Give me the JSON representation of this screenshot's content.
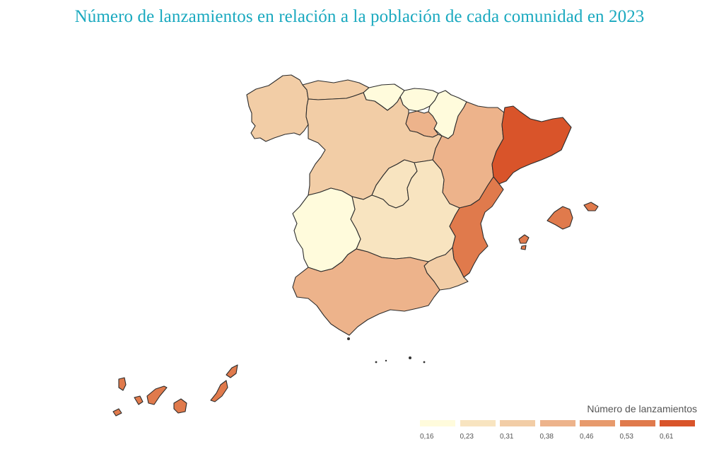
{
  "title": "Número de lanzamientos en relación a la población de cada comunidad en 2023",
  "legend": {
    "title": "Número de lanzamientos",
    "items": [
      {
        "label": "0,16",
        "color": "#fffbdc"
      },
      {
        "label": "0,23",
        "color": "#f8e4c0"
      },
      {
        "label": "0,31",
        "color": "#f2cda6"
      },
      {
        "label": "0,38",
        "color": "#edb38b"
      },
      {
        "label": "0,46",
        "color": "#e79a6c"
      },
      {
        "label": "0,53",
        "color": "#e07a4c"
      },
      {
        "label": "0,61",
        "color": "#d9542a"
      }
    ]
  },
  "regions": [
    {
      "name": "Galicia",
      "value": 0.31,
      "color": "#f2cda6"
    },
    {
      "name": "Asturias",
      "value": 0.31,
      "color": "#f2cda6"
    },
    {
      "name": "Cantabria",
      "value": 0.16,
      "color": "#fffbdc"
    },
    {
      "name": "País Vasco",
      "value": 0.16,
      "color": "#fffbdc"
    },
    {
      "name": "Navarra",
      "value": 0.16,
      "color": "#fffbdc"
    },
    {
      "name": "La Rioja",
      "value": 0.38,
      "color": "#edb38b"
    },
    {
      "name": "Aragón",
      "value": 0.38,
      "color": "#edb38b"
    },
    {
      "name": "Cataluña",
      "value": 0.61,
      "color": "#d9542a"
    },
    {
      "name": "Castilla y León",
      "value": 0.31,
      "color": "#f2cda6"
    },
    {
      "name": "Madrid",
      "value": 0.23,
      "color": "#f8e4c0"
    },
    {
      "name": "Castilla-La Mancha",
      "value": 0.23,
      "color": "#f8e4c0"
    },
    {
      "name": "Extremadura",
      "value": 0.16,
      "color": "#fffbdc"
    },
    {
      "name": "Comunidad Valenciana",
      "value": 0.53,
      "color": "#e07a4c"
    },
    {
      "name": "Región de Murcia",
      "value": 0.31,
      "color": "#f2cda6"
    },
    {
      "name": "Andalucía",
      "value": 0.38,
      "color": "#edb38b"
    },
    {
      "name": "Islas Baleares",
      "value": 0.53,
      "color": "#e07a4c"
    },
    {
      "name": "Canarias",
      "value": 0.53,
      "color": "#e07a4c"
    },
    {
      "name": "Ceuta",
      "value": null,
      "color": "#333333"
    },
    {
      "name": "Melilla",
      "value": null,
      "color": "#333333"
    }
  ]
}
